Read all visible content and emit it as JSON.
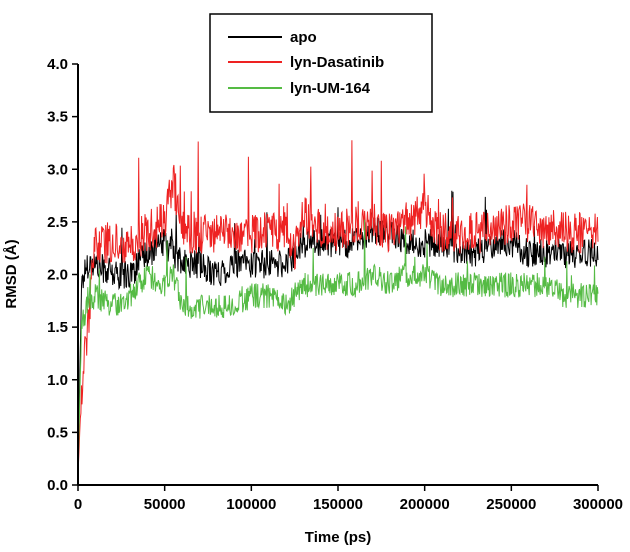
{
  "chart_data": {
    "type": "line",
    "title": "",
    "xlabel": "Time (ps)",
    "ylabel": "RMSD (Å)",
    "xlim": [
      0,
      300000
    ],
    "ylim": [
      0.0,
      4.0
    ],
    "x_ticks": [
      "0",
      "50000",
      "100000",
      "150000",
      "200000",
      "250000",
      "300000"
    ],
    "y_ticks": [
      "0.0",
      "0.5",
      "1.0",
      "1.5",
      "2.0",
      "2.5",
      "3.0",
      "3.5",
      "4.0"
    ],
    "grid": false,
    "legend_position": "top-center",
    "x": [
      0,
      2000,
      5000,
      10000,
      20000,
      30000,
      40000,
      50000,
      55000,
      60000,
      70000,
      80000,
      90000,
      100000,
      110000,
      120000,
      125000,
      130000,
      140000,
      150000,
      160000,
      170000,
      180000,
      190000,
      200000,
      210000,
      220000,
      230000,
      240000,
      250000,
      260000,
      270000,
      280000,
      290000,
      300000
    ],
    "series": [
      {
        "name": "apo",
        "color": "#000000",
        "values": [
          0.1,
          1.9,
          2.1,
          2.1,
          2.0,
          2.0,
          2.2,
          2.3,
          2.2,
          2.1,
          2.1,
          2.0,
          2.1,
          2.1,
          2.1,
          2.1,
          2.2,
          2.3,
          2.3,
          2.3,
          2.3,
          2.4,
          2.4,
          2.3,
          2.3,
          2.3,
          2.2,
          2.2,
          2.3,
          2.3,
          2.2,
          2.2,
          2.2,
          2.2,
          2.2
        ]
      },
      {
        "name": "lyn-Dasatinib",
        "color": "#ee2222",
        "values": [
          0.1,
          0.9,
          1.4,
          2.3,
          2.3,
          2.3,
          2.4,
          2.5,
          2.9,
          2.4,
          2.4,
          2.4,
          2.4,
          2.4,
          2.4,
          2.4,
          2.2,
          2.6,
          2.4,
          2.4,
          2.5,
          2.5,
          2.4,
          2.5,
          2.6,
          2.4,
          2.4,
          2.4,
          2.4,
          2.5,
          2.5,
          2.4,
          2.4,
          2.4,
          2.4
        ]
      },
      {
        "name": "lyn-UM-164",
        "color": "#55bb44",
        "values": [
          0.1,
          1.5,
          1.7,
          1.8,
          1.7,
          1.8,
          2.0,
          1.9,
          2.0,
          1.7,
          1.7,
          1.7,
          1.7,
          1.8,
          1.8,
          1.7,
          1.8,
          1.9,
          1.9,
          1.9,
          1.9,
          2.0,
          1.9,
          2.0,
          2.0,
          1.9,
          1.9,
          1.9,
          1.9,
          1.9,
          1.9,
          1.9,
          1.8,
          1.8,
          1.8
        ]
      }
    ]
  }
}
